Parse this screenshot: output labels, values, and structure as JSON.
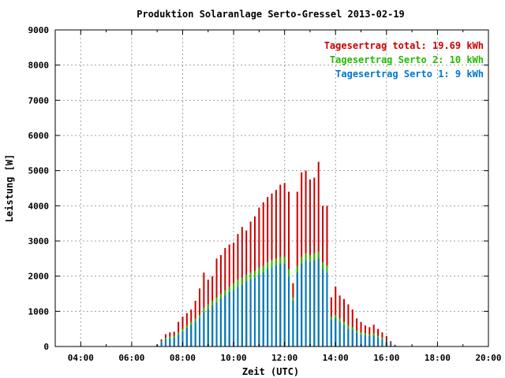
{
  "chart_data": {
    "type": "bar",
    "title": "Produktion Solaranlage Serto-Gressel 2013-02-19",
    "xlabel": "Zeit (UTC)",
    "ylabel": "Leistung [W]",
    "xlim": [
      3,
      20
    ],
    "ylim": [
      0,
      9000
    ],
    "grid": true,
    "legend_position": "top-right",
    "x_tick_labels": [
      "04:00",
      "06:00",
      "08:00",
      "10:00",
      "12:00",
      "14:00",
      "16:00",
      "18:00",
      "20:00"
    ],
    "y_tick_labels": [
      "0",
      "1000",
      "2000",
      "3000",
      "4000",
      "5000",
      "6000",
      "7000",
      "8000",
      "9000"
    ],
    "legend": [
      {
        "label": "Tagesertrag total: 19.69 kWh",
        "color": "#cc0000"
      },
      {
        "label": "Tagesertrag Serto 2: 10 kWh",
        "color": "#22bb00"
      },
      {
        "label": "Tagesertrag Serto 1: 9 kWh",
        "color": "#0077cc"
      }
    ],
    "x": [
      "07:00",
      "07:10",
      "07:20",
      "07:30",
      "07:40",
      "07:50",
      "08:00",
      "08:10",
      "08:20",
      "08:30",
      "08:40",
      "08:50",
      "09:00",
      "09:10",
      "09:20",
      "09:30",
      "09:40",
      "09:50",
      "10:00",
      "10:10",
      "10:20",
      "10:30",
      "10:40",
      "10:50",
      "11:00",
      "11:10",
      "11:20",
      "11:30",
      "11:40",
      "11:50",
      "12:00",
      "12:10",
      "12:20",
      "12:30",
      "12:40",
      "12:50",
      "13:00",
      "13:10",
      "13:20",
      "13:30",
      "13:40",
      "13:50",
      "14:00",
      "14:10",
      "14:20",
      "14:30",
      "14:40",
      "14:50",
      "15:00",
      "15:10",
      "15:20",
      "15:30",
      "15:40",
      "15:50",
      "16:00",
      "16:10",
      "16:20"
    ],
    "series": [
      {
        "name": "Tagesertrag total: 19.69 kWh",
        "color": "#cc0000",
        "values": [
          50,
          200,
          350,
          400,
          420,
          700,
          850,
          950,
          1050,
          1300,
          1650,
          2100,
          1900,
          2000,
          2500,
          2600,
          2800,
          2900,
          2950,
          3200,
          3400,
          3300,
          3550,
          3700,
          3950,
          4100,
          4250,
          4350,
          4450,
          4600,
          4650,
          4400,
          1800,
          4400,
          4950,
          5000,
          4750,
          4800,
          5250,
          4000,
          4000,
          1400,
          1700,
          1450,
          1350,
          1200,
          1050,
          800,
          700,
          600,
          550,
          620,
          500,
          400,
          300,
          150,
          50
        ]
      },
      {
        "name": "Tagesertrag Serto 2: 10 kWh",
        "color": "#22bb00",
        "values": [
          40,
          150,
          250,
          280,
          300,
          400,
          500,
          600,
          700,
          800,
          900,
          1100,
          1200,
          1300,
          1400,
          1500,
          1600,
          1700,
          1800,
          1900,
          1950,
          2050,
          2100,
          2150,
          2250,
          2300,
          2400,
          2450,
          2500,
          2550,
          2550,
          2200,
          1400,
          2300,
          2550,
          2650,
          2600,
          2650,
          2700,
          2400,
          2300,
          850,
          900,
          800,
          700,
          600,
          550,
          450,
          400,
          380,
          350,
          380,
          300,
          250,
          150,
          100,
          30
        ]
      },
      {
        "name": "Tagesertrag Serto 1: 9 kWh",
        "color": "#0077cc",
        "values": [
          30,
          120,
          200,
          220,
          250,
          330,
          420,
          520,
          600,
          700,
          800,
          980,
          1050,
          1150,
          1250,
          1350,
          1450,
          1550,
          1600,
          1700,
          1750,
          1850,
          1900,
          1950,
          2050,
          2100,
          2200,
          2250,
          2300,
          2350,
          2350,
          2000,
          1300,
          2100,
          2350,
          2450,
          2400,
          2450,
          2500,
          2200,
          2100,
          750,
          800,
          700,
          600,
          500,
          470,
          380,
          330,
          310,
          290,
          310,
          250,
          200,
          120,
          80,
          20
        ]
      }
    ]
  }
}
